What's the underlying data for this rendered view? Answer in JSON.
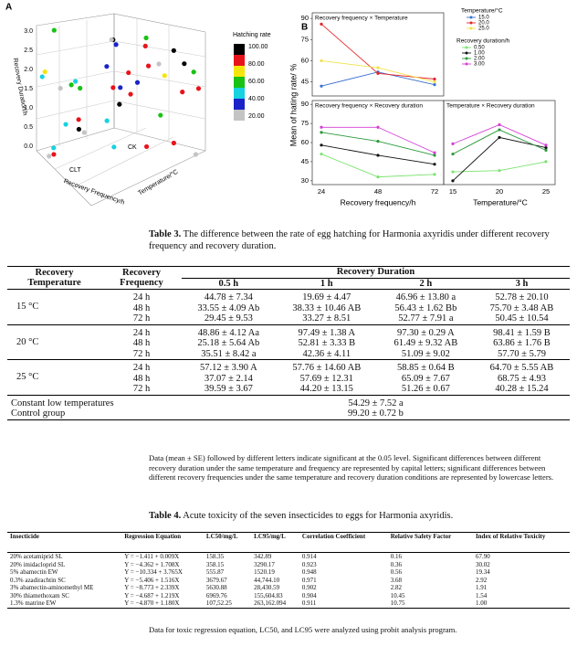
{
  "figure": {
    "panel_a": {
      "label": "A",
      "legend_title": "Hatching rate",
      "legend_colors": [
        "#000000",
        "#e8141b",
        "#f5e60a",
        "#19c214",
        "#17d2e0",
        "#1a23c8",
        "#c4c4c4"
      ],
      "legend_labels": [
        "100.00",
        "80.00",
        "60.00",
        "40.00",
        "20.00"
      ],
      "z_ticks": [
        "0.0",
        "0.5",
        "1.0",
        "1.5",
        "2.0",
        "2.5",
        "3.0"
      ],
      "z_label": "Recovery Duration/h",
      "x_label": "Recovery Frequency/h",
      "y_label": "Temperature/°C",
      "annotations": [
        "CK",
        "CLT"
      ]
    },
    "panel_b": {
      "label": "B",
      "y_label": "Mean of hating rate/ %",
      "x_label_left": "Recovery frequency/h",
      "x_label_right": "Temperature/°C",
      "frequencies": [
        24,
        48,
        72
      ],
      "temperatures": [
        15,
        20,
        25
      ],
      "temperature_legend": {
        "title": "Temperature/°C",
        "items": [
          {
            "name": "15.0",
            "color": "#3a6fd1",
            "values": [
              42,
              52,
              43
            ]
          },
          {
            "name": "20.0",
            "color": "#e3262b",
            "values": [
              86,
              51,
              47
            ]
          },
          {
            "name": "25.0",
            "color": "#f2e24a",
            "values": [
              60,
              55,
              45
            ]
          }
        ]
      },
      "duration_legend": {
        "title": "Recovery duration/h",
        "items": [
          {
            "name": "0.50",
            "color": "#7be36f",
            "by_frequency": [
              51,
              33,
              35
            ],
            "by_temperature": [
              37,
              38,
              45
            ]
          },
          {
            "name": "1.00",
            "color": "#111111",
            "by_frequency": [
              58,
              50,
              43
            ],
            "by_temperature": [
              30,
              64,
              56
            ]
          },
          {
            "name": "2.00",
            "color": "#2a9a3a",
            "by_frequency": [
              68,
              61,
              50
            ],
            "by_temperature": [
              51,
              70,
              54
            ]
          },
          {
            "name": "3.00",
            "color": "#d43fd4",
            "by_frequency": [
              72,
              72,
              52
            ],
            "by_temperature": [
              59,
              74,
              58
            ]
          }
        ]
      },
      "top": {
        "title": "Recovery frequency × Temperature",
        "ylim": [
          35,
          94
        ],
        "yticks": [
          45,
          60,
          75,
          90
        ]
      },
      "bottom_left": {
        "title": "Recovery frequency × Recovery duration",
        "ylim": [
          27,
          93
        ],
        "yticks": [
          30,
          45,
          60,
          75,
          90
        ]
      },
      "bottom_right": {
        "title": "Temperature × Recovery duration",
        "ylim": [
          27,
          93
        ]
      }
    }
  },
  "table3": {
    "label": "Table 3.",
    "caption": "The difference between the rate of egg hatching for Harmonia axyridis under different recovery frequency and recovery duration.",
    "headers": [
      "Recovery Temperature",
      "Recovery Frequency",
      "Recovery Duration"
    ],
    "durations": [
      "0.5 h",
      "1 h",
      "2 h",
      "3 h"
    ],
    "groups": [
      {
        "temperature": "15 °C",
        "rows": [
          [
            "24 h",
            "44.78 ± 7.34",
            "19.69 ± 4.47",
            "46.96 ± 13.80 a",
            "52.78 ± 20.10"
          ],
          [
            "48 h",
            "33.55 ± 4.09 Ab",
            "38.33 ± 10.46 AB",
            "56.43 ± 1.62 Bb",
            "75.70 ± 3.48 AB"
          ],
          [
            "72 h",
            "29.45 ± 9.53",
            "33.27 ± 8.51",
            "52.77 ± 7.91 a",
            "50.45 ± 10.54"
          ]
        ]
      },
      {
        "temperature": "20 °C",
        "rows": [
          [
            "24 h",
            "48.86 ± 4.12 Aa",
            "97.49 ± 1.38 A",
            "97.30 ± 0.29 A",
            "98.41 ± 1.59 B"
          ],
          [
            "48 h",
            "25.18 ± 5.64 Ab",
            "52.81 ± 3.33 B",
            "61.49 ± 9.32 AB",
            "63.86 ± 1.76 B"
          ],
          [
            "72 h",
            "35.51 ± 8.42 a",
            "42.36 ± 4.11",
            "51.09 ± 9.02",
            "57.70 ± 5.79"
          ]
        ]
      },
      {
        "temperature": "25 °C",
        "rows": [
          [
            "24 h",
            "57.12 ± 3.90 A",
            "57.76 ± 14.60 AB",
            "58.85 ± 0.64 B",
            "64.70 ± 5.55 AB"
          ],
          [
            "48 h",
            "37.07 ± 2.14",
            "57.69 ± 12.31",
            "65.09 ± 7.67",
            "68.75 ± 4.93"
          ],
          [
            "72 h",
            "39.59 ± 3.67",
            "44.20 ± 13.15",
            "51.26 ± 0.67",
            "40.28 ± 15.24"
          ]
        ]
      }
    ],
    "extra_rows": [
      [
        "Constant low temperatures",
        "54.29 ± 7.52 a"
      ],
      [
        "Control group",
        "99.20 ± 0.72 b"
      ]
    ],
    "note": "Data (mean ± SE) followed by different letters indicate significant at the 0.05 level. Significant differences between different recovery duration under the same temperature and frequency are represented by capital letters; significant differences between different recovery frequencies under the same temperature and recovery duration conditions are represented by lowercase letters."
  },
  "table4": {
    "label": "Table 4.",
    "caption": "Acute toxicity of the seven insecticides to eggs for Harmonia axyridis.",
    "headers": [
      "Insecticide",
      "Regression Equation",
      "LC50/mg/L",
      "LC95/mg/L",
      "Correlation Coefficient",
      "Relative Safety Factor",
      "Index of Relative Toxicity"
    ],
    "rows": [
      [
        "20% acetamiprid SL",
        "Y = −1.411 + 0.009X",
        "158.35",
        "342.89",
        "0.914",
        "0.16",
        "67.90"
      ],
      [
        "20% imidacloprid SL",
        "Y = −4.362 + 1.708X",
        "358.15",
        "3290.17",
        "0.923",
        "0.36",
        "30.02"
      ],
      [
        "5% abamectin EW",
        "Y = −10.334 + 3.765X",
        "555.87",
        "1520.19",
        "0.948",
        "0.56",
        "19.34"
      ],
      [
        "0.3% azadirachtin SC",
        "Y = −5.406 + 1.516X",
        "3679.67",
        "44,744.10",
        "0.971",
        "3.68",
        "2.92"
      ],
      [
        "3% abamectin-aminomethyl ME",
        "Y = −8.773 + 2.339X",
        "5630.88",
        "28,430.59",
        "0.902",
        "2.82",
        "1.91"
      ],
      [
        "30% thiamethoxam SC",
        "Y = −4.687 + 1.219X",
        "6969.76",
        "155,604.83",
        "0.904",
        "10.45",
        "1.54"
      ],
      [
        "1.3% matrine EW",
        "Y = −4.870 + 1.180X",
        "107,52.25",
        "263,162.094",
        "0.911",
        "10.75",
        "1.00"
      ]
    ],
    "note": "Data for toxic regression equation, LC50, and LC95 were analyzed using probit analysis program."
  }
}
